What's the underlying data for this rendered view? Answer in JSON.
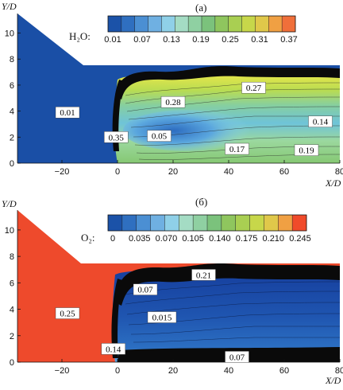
{
  "chart_data": [
    {
      "type": "contour",
      "panel_label": "(а)",
      "variable": "H₂O:",
      "ylabel": "Y/D",
      "xlabel": "X/D",
      "xlim": [
        -36,
        80
      ],
      "ylim": [
        0,
        11.5
      ],
      "x_ticks": [
        "−20",
        "0",
        "20",
        "40",
        "60",
        "80"
      ],
      "y_ticks": [
        "0",
        "2",
        "4",
        "6",
        "8",
        "10"
      ],
      "colorbar": {
        "range": [
          0.01,
          0.4
        ],
        "ticks": [
          "0.01",
          "0.07",
          "0.13",
          "0.19",
          "0.25",
          "0.31",
          "0.37"
        ],
        "colors": [
          "#1b52a8",
          "#2f6fc0",
          "#4b8fd3",
          "#6fb0e2",
          "#8fd0e8",
          "#a4dcc4",
          "#8fd0a2",
          "#7bc27c",
          "#8fc65e",
          "#a9cf52",
          "#c7d74a",
          "#e0c84a",
          "#f0a043",
          "#f06f3a"
        ]
      },
      "contour_labels": [
        {
          "text": "0.01",
          "x": -18,
          "y": 3.9
        },
        {
          "text": "0.35",
          "x": -0.5,
          "y": 2.0
        },
        {
          "text": "0.28",
          "x": 20,
          "y": 4.7
        },
        {
          "text": "0.27",
          "x": 49,
          "y": 5.8
        },
        {
          "text": "0.05",
          "x": 15,
          "y": 2.1
        },
        {
          "text": "0.14",
          "x": 73,
          "y": 3.2
        },
        {
          "text": "0.17",
          "x": 43,
          "y": 1.1
        },
        {
          "text": "0.19",
          "x": 68,
          "y": 1.0
        }
      ]
    },
    {
      "type": "contour",
      "panel_label": "(б)",
      "variable": "O₂:",
      "ylabel": "Y/D",
      "xlabel": "X/D",
      "xlim": [
        -36,
        80
      ],
      "ylim": [
        0,
        11.5
      ],
      "x_ticks": [
        "−20",
        "0",
        "20",
        "40",
        "60",
        "80"
      ],
      "y_ticks": [
        "0",
        "2",
        "4",
        "6",
        "8",
        "10"
      ],
      "colorbar": {
        "range": [
          0,
          0.26
        ],
        "ticks": [
          "0",
          "0.035",
          "0.070",
          "0.105",
          "0.140",
          "0.175",
          "0.210",
          "0.245"
        ],
        "colors": [
          "#1b52a8",
          "#2f6fc0",
          "#4b8fd3",
          "#6fb0e2",
          "#8fd0e8",
          "#a4dcc4",
          "#8fd0a2",
          "#7bc27c",
          "#8fc65e",
          "#a9cf52",
          "#c7d74a",
          "#e0c84a",
          "#f0a043",
          "#f04a2a"
        ]
      },
      "contour_labels": [
        {
          "text": "0.25",
          "x": -18,
          "y": 3.7
        },
        {
          "text": "0.14",
          "x": -1.5,
          "y": 1.0
        },
        {
          "text": "0.07",
          "x": 10,
          "y": 5.5
        },
        {
          "text": "0.21",
          "x": 31,
          "y": 6.6
        },
        {
          "text": "0.015",
          "x": 16,
          "y": 3.4
        },
        {
          "text": "0.07",
          "x": 43,
          "y": 0.4
        }
      ]
    }
  ]
}
